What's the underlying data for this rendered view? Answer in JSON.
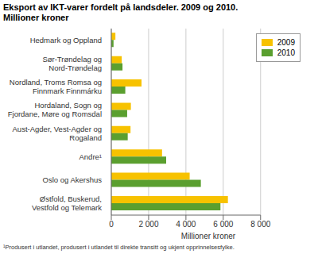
{
  "chart_data": {
    "type": "bar",
    "orientation": "horizontal",
    "title": "Eksport av IKT-varer fordelt på landsdeler. 2009 og 2010.",
    "subtitle": "Millioner kroner",
    "x_label": "Millioner kroner",
    "annotations": [
      "¹Produsert i utlandet, produsert i utlandet til direkte transitt og ukjent opprinnelsesfylke."
    ],
    "categories": [
      "Hedmark og Oppland",
      "Sør-Trøndelag og Nord-Trøndelag",
      "Nordland, Troms Romsa og Finnmark Finnmárku",
      "Hordaland, Sogn og Fjordane, Møre og Romsdal",
      "Aust-Agder, Vest-Agder og Rogaland",
      "Andre¹",
      "Oslo og Akershus",
      "Østfold, Buskerud, Vestfold og Telemark"
    ],
    "series": [
      {
        "name": "2009",
        "color": "#f7c200",
        "values": [
          220,
          560,
          1620,
          1050,
          1030,
          2720,
          4200,
          6250
        ]
      },
      {
        "name": "2010",
        "color": "#5a9f2f",
        "values": [
          120,
          600,
          750,
          850,
          880,
          2940,
          4800,
          5850
        ]
      }
    ],
    "xlim": [
      0,
      8000
    ],
    "xticks": [
      0,
      {
        "value": 2000,
        "label": "2 000"
      },
      {
        "value": 4000,
        "label": "4 000"
      },
      {
        "value": 6000,
        "label": "6 000"
      },
      {
        "value": 8000,
        "label": "8 000"
      }
    ],
    "grid": true,
    "legend": "top-right"
  }
}
